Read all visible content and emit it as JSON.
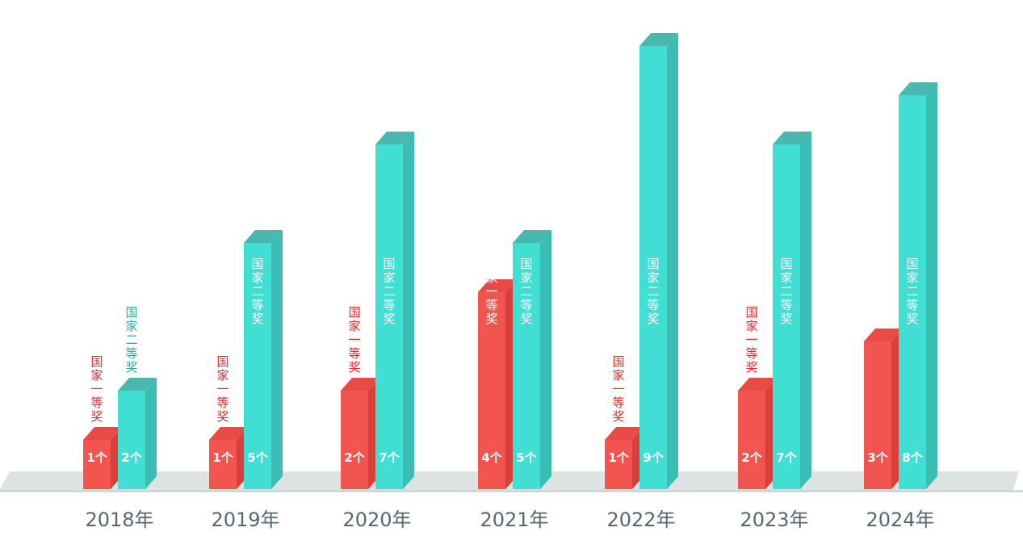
{
  "colors": {
    "first_prize": "#f2554f",
    "first_prize_top": "#e84a45",
    "first_prize_side": "#d93f3a",
    "second_prize": "#40ded3",
    "second_prize_top": "#4ab8ae",
    "second_prize_side": "#3cbdb3",
    "first_prize_label": "#e8282b",
    "second_prize_label": "#31a79c",
    "floor": "#dce3e2"
  },
  "chart_data": {
    "type": "bar",
    "categories": [
      "2018年",
      "2019年",
      "2020年",
      "2021年",
      "2022年",
      "2023年",
      "2024年"
    ],
    "series": [
      {
        "name": "国家一等奖",
        "values": [
          1,
          1,
          2,
          4,
          1,
          2,
          3
        ],
        "value_labels": [
          "1个",
          "1个",
          "2个",
          "4个",
          "1个",
          "2个",
          "3个"
        ]
      },
      {
        "name": "国家二等奖",
        "values": [
          2,
          5,
          7,
          5,
          9,
          7,
          8
        ],
        "value_labels": [
          "2个",
          "5个",
          "7个",
          "5个",
          "9个",
          "7个",
          "8个"
        ]
      }
    ],
    "ylim": [
      0,
      9
    ],
    "grid": false,
    "legend": "none"
  }
}
